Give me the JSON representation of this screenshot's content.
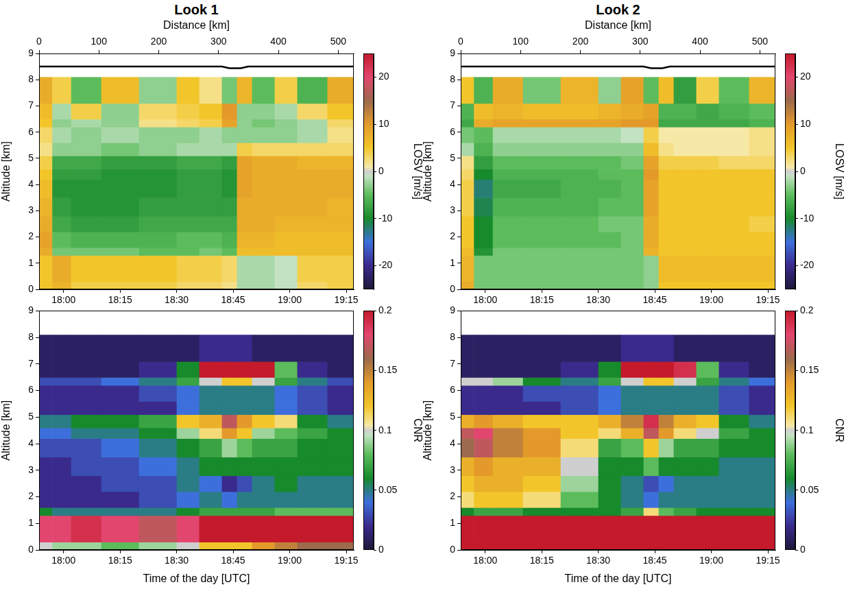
{
  "chart_data": [
    {
      "type": "heatmap",
      "title": "Look 1",
      "x2label": "Distance [km]",
      "x2lim": [
        0,
        526
      ],
      "x2ticks": [
        0,
        100,
        200,
        300,
        400,
        500
      ],
      "ylabel": "Altitude [km]",
      "xlim": [
        1073.5,
        1157
      ],
      "xticks": [
        {
          "value": 1080,
          "label": "18:00"
        },
        {
          "value": 1095,
          "label": "18:15"
        },
        {
          "value": 1110,
          "label": "18:30"
        },
        {
          "value": 1125,
          "label": "18:45"
        },
        {
          "value": 1140,
          "label": "19:00"
        },
        {
          "value": 1155,
          "label": "19:15"
        }
      ],
      "ylim": [
        0,
        9
      ],
      "yticks": [
        0,
        1,
        2,
        3,
        4,
        5,
        6,
        7,
        8,
        9
      ],
      "x_edges": [
        1073.5,
        1077,
        1082,
        1090,
        1100,
        1110,
        1116,
        1122,
        1126,
        1130,
        1136,
        1142,
        1150,
        1157
      ],
      "y_edges": [
        0,
        0.3,
        1.3,
        1.6,
        2.2,
        2.8,
        3.5,
        4.2,
        4.6,
        5.1,
        5.6,
        6.2,
        6.5,
        7.1,
        8.1
      ],
      "cells": [
        [
          5,
          7,
          4,
          4,
          4,
          3,
          3,
          2,
          -2,
          -2,
          -1,
          3,
          4
        ],
        [
          5,
          8,
          5,
          5,
          5,
          4,
          4,
          3,
          -2,
          -2,
          -1,
          4,
          4
        ],
        [
          8,
          -4,
          -4,
          -4,
          -5,
          -5,
          -4,
          -5,
          6,
          6,
          6,
          6,
          6
        ],
        [
          9,
          -5,
          -6,
          -6,
          -6,
          -5,
          -5,
          -6,
          7,
          7,
          6,
          6,
          6
        ],
        [
          8,
          -7,
          -8,
          -8,
          -7,
          -7,
          -7,
          -7,
          8,
          8,
          7,
          7,
          7
        ],
        [
          7,
          -8,
          -9,
          -9,
          -8,
          -8,
          -8,
          -8,
          8,
          8,
          8,
          8,
          7
        ],
        [
          6,
          -9,
          -9,
          -9,
          -9,
          -8,
          -8,
          -9,
          9,
          8,
          8,
          8,
          8
        ],
        [
          5,
          -8,
          -8,
          -9,
          -9,
          -8,
          -8,
          -9,
          9,
          8,
          8,
          8,
          8
        ],
        [
          4,
          -7,
          -7,
          -8,
          -8,
          -7,
          -7,
          -8,
          9,
          8,
          8,
          7,
          7
        ],
        [
          2,
          -3,
          -3,
          -4,
          -3,
          -2,
          -2,
          -2,
          4,
          3,
          3,
          3,
          3
        ],
        [
          3,
          -2,
          -3,
          -2,
          -3,
          -3,
          -2,
          -3,
          -3,
          -3,
          -3,
          -2,
          2
        ],
        [
          5,
          -3,
          -2,
          -3,
          2,
          3,
          4,
          9,
          -3,
          -4,
          -3,
          -2,
          3
        ],
        [
          6,
          -2,
          4,
          -3,
          3,
          4,
          5,
          10,
          -3,
          -3,
          -2,
          3,
          5
        ],
        [
          8,
          4,
          -5,
          6,
          -3,
          5,
          2,
          -4,
          7,
          -5,
          4,
          -6,
          8
        ]
      ],
      "colorbar": {
        "label": "LOSV [m/s]",
        "range": [
          -25,
          25
        ],
        "ticks": [
          -20,
          -10,
          0,
          10,
          20
        ]
      },
      "line": {
        "x": [
          1073.5,
          1122,
          1124,
          1127,
          1129,
          1157
        ],
        "values": [
          8.5,
          8.5,
          8.44,
          8.44,
          8.5,
          8.5
        ],
        "color": "#000000"
      }
    },
    {
      "type": "heatmap",
      "title": "Look 2",
      "x2label": "Distance [km]",
      "x2lim": [
        0,
        526
      ],
      "x2ticks": [
        0,
        100,
        200,
        300,
        400,
        500
      ],
      "ylabel": "Altitude [km]",
      "xlim": [
        1073.5,
        1157
      ],
      "xticks": [
        {
          "value": 1080,
          "label": "18:00"
        },
        {
          "value": 1095,
          "label": "18:15"
        },
        {
          "value": 1110,
          "label": "18:30"
        },
        {
          "value": 1125,
          "label": "18:45"
        },
        {
          "value": 1140,
          "label": "19:00"
        },
        {
          "value": 1155,
          "label": "19:15"
        }
      ],
      "ylim": [
        0,
        9
      ],
      "yticks": [
        0,
        1,
        2,
        3,
        4,
        5,
        6,
        7,
        8,
        9
      ],
      "x_edges": [
        1073.5,
        1077,
        1082,
        1090,
        1100,
        1110,
        1116,
        1122,
        1126,
        1130,
        1136,
        1142,
        1150,
        1157
      ],
      "y_edges": [
        0,
        0.3,
        1.3,
        1.6,
        2.2,
        2.8,
        3.5,
        4.2,
        4.6,
        5.1,
        5.6,
        6.2,
        6.5,
        7.1,
        8.1
      ],
      "cells": [
        [
          8,
          -4,
          -4,
          -4,
          -4,
          -4,
          -4,
          -3,
          5,
          5,
          5,
          5,
          5
        ],
        [
          7,
          -4,
          -4,
          -4,
          -4,
          -4,
          -4,
          -3,
          6,
          6,
          6,
          6,
          6
        ],
        [
          6,
          -9,
          -4,
          -4,
          -4,
          -4,
          -4,
          7,
          5,
          5,
          5,
          5,
          5
        ],
        [
          5,
          -10,
          -5,
          -5,
          -5,
          -5,
          -4,
          8,
          5,
          5,
          5,
          5,
          5
        ],
        [
          5,
          -10,
          -5,
          -5,
          -5,
          -4,
          -4,
          8,
          5,
          5,
          5,
          5,
          4
        ],
        [
          4,
          -11,
          -6,
          -6,
          -6,
          -5,
          -5,
          9,
          5,
          5,
          5,
          5,
          5
        ],
        [
          4,
          -12,
          -7,
          -7,
          -6,
          -6,
          -5,
          9,
          5,
          5,
          5,
          5,
          5
        ],
        [
          3,
          -10,
          -6,
          -6,
          -6,
          -5,
          -5,
          10,
          5,
          5,
          5,
          5,
          5
        ],
        [
          2,
          -8,
          -5,
          -5,
          -5,
          -5,
          -4,
          9,
          4,
          4,
          4,
          3,
          3
        ],
        [
          -2,
          -6,
          -3,
          -3,
          -3,
          -3,
          -3,
          6,
          2,
          1,
          1,
          1,
          2
        ],
        [
          -4,
          -5,
          -2,
          -2,
          -2,
          -2,
          -1,
          4,
          1,
          1,
          1,
          1,
          2
        ],
        [
          -7,
          8,
          9,
          9,
          9,
          9,
          10,
          10,
          -7,
          -7,
          -7,
          -7,
          -6
        ],
        [
          -6,
          6,
          7,
          6,
          6,
          7,
          8,
          9,
          -6,
          -6,
          -7,
          -6,
          -5
        ],
        [
          5,
          -6,
          8,
          -4,
          7,
          -3,
          9,
          -5,
          6,
          -8,
          4,
          -5,
          7
        ]
      ],
      "colorbar": {
        "label": "LOSV [m/s]",
        "range": [
          -25,
          25
        ],
        "ticks": [
          -20,
          -10,
          0,
          10,
          20
        ]
      },
      "line": {
        "x": [
          1073.5,
          1122,
          1124,
          1127,
          1129,
          1157
        ],
        "values": [
          8.5,
          8.5,
          8.44,
          8.44,
          8.5,
          8.5
        ],
        "color": "#000000"
      }
    },
    {
      "type": "heatmap",
      "xlabel": "Time of the day [UTC]",
      "ylabel": "Altitude [km]",
      "xlim": [
        1073.5,
        1157
      ],
      "xticks": [
        {
          "value": 1080,
          "label": "18:00"
        },
        {
          "value": 1095,
          "label": "18:15"
        },
        {
          "value": 1110,
          "label": "18:30"
        },
        {
          "value": 1125,
          "label": "18:45"
        },
        {
          "value": 1140,
          "label": "19:00"
        },
        {
          "value": 1155,
          "label": "19:15"
        }
      ],
      "ylim": [
        0,
        9
      ],
      "yticks": [
        0,
        1,
        2,
        3,
        4,
        5,
        6,
        7,
        8,
        9
      ],
      "x_edges": [
        1073.5,
        1077,
        1082,
        1090,
        1100,
        1110,
        1116,
        1122,
        1126,
        1130,
        1136,
        1142,
        1150,
        1157
      ],
      "y_edges": [
        0,
        0.3,
        1.3,
        1.6,
        2.2,
        2.8,
        3.5,
        4.2,
        4.6,
        5.1,
        5.6,
        6.2,
        6.5,
        7.1,
        8.1
      ],
      "cells": [
        [
          0.1,
          0.09,
          0.09,
          0.08,
          0.09,
          0.1,
          0.12,
          0.12,
          0.12,
          0.14,
          0.15,
          0.16,
          0.16
        ],
        [
          0.18,
          0.18,
          0.19,
          0.18,
          0.17,
          0.18,
          0.2,
          0.2,
          0.2,
          0.2,
          0.2,
          0.2,
          0.2
        ],
        [
          0.06,
          0.05,
          0.05,
          0.05,
          0.05,
          0.06,
          0.07,
          0.07,
          0.07,
          0.07,
          0.08,
          0.08,
          0.08
        ],
        [
          0.02,
          0.02,
          0.02,
          0.02,
          0.03,
          0.04,
          0.05,
          0.04,
          0.05,
          0.05,
          0.05,
          0.05,
          0.05
        ],
        [
          0.02,
          0.02,
          0.02,
          0.03,
          0.03,
          0.05,
          0.04,
          0.02,
          0.03,
          0.05,
          0.06,
          0.05,
          0.05
        ],
        [
          0.02,
          0.02,
          0.03,
          0.03,
          0.04,
          0.05,
          0.06,
          0.06,
          0.06,
          0.06,
          0.06,
          0.06,
          0.06
        ],
        [
          0.03,
          0.03,
          0.03,
          0.04,
          0.05,
          0.06,
          0.07,
          0.09,
          0.08,
          0.07,
          0.07,
          0.06,
          0.06
        ],
        [
          0.04,
          0.04,
          0.05,
          0.05,
          0.06,
          0.09,
          0.11,
          0.14,
          0.12,
          0.09,
          0.08,
          0.07,
          0.06
        ],
        [
          0.05,
          0.05,
          0.06,
          0.06,
          0.07,
          0.12,
          0.13,
          0.17,
          0.14,
          0.12,
          0.11,
          0.06,
          0.05
        ],
        [
          0.02,
          0.02,
          0.02,
          0.02,
          0.02,
          0.04,
          0.05,
          0.05,
          0.05,
          0.05,
          0.04,
          0.03,
          0.02
        ],
        [
          0.02,
          0.02,
          0.02,
          0.02,
          0.03,
          0.04,
          0.05,
          0.05,
          0.05,
          0.05,
          0.04,
          0.03,
          0.02
        ],
        [
          0.03,
          0.03,
          0.03,
          0.04,
          0.05,
          0.07,
          0.1,
          0.12,
          0.12,
          0.1,
          0.07,
          0.05,
          0.03
        ],
        [
          0.01,
          0.01,
          0.01,
          0.01,
          0.02,
          0.06,
          0.2,
          0.2,
          0.2,
          0.2,
          0.08,
          0.02,
          0.01
        ],
        [
          0.01,
          0.01,
          0.01,
          0.01,
          0.01,
          0.01,
          0.02,
          0.02,
          0.02,
          0.01,
          0.01,
          0.01,
          0.01
        ]
      ],
      "colorbar": {
        "label": "CNR",
        "range": [
          0,
          0.2
        ],
        "ticks": [
          0,
          0.05,
          0.1,
          0.15,
          0.2
        ]
      }
    },
    {
      "type": "heatmap",
      "xlabel": "Time of the day [UTC]",
      "ylabel": "Altitude [km]",
      "xlim": [
        1073.5,
        1157
      ],
      "xticks": [
        {
          "value": 1080,
          "label": "18:00"
        },
        {
          "value": 1095,
          "label": "18:15"
        },
        {
          "value": 1110,
          "label": "18:30"
        },
        {
          "value": 1125,
          "label": "18:45"
        },
        {
          "value": 1140,
          "label": "19:00"
        },
        {
          "value": 1155,
          "label": "19:15"
        }
      ],
      "ylim": [
        0,
        9
      ],
      "yticks": [
        0,
        1,
        2,
        3,
        4,
        5,
        6,
        7,
        8,
        9
      ],
      "x_edges": [
        1073.5,
        1077,
        1082,
        1090,
        1100,
        1110,
        1116,
        1122,
        1126,
        1130,
        1136,
        1142,
        1150,
        1157
      ],
      "y_edges": [
        0,
        0.3,
        1.3,
        1.6,
        2.2,
        2.8,
        3.5,
        4.2,
        4.6,
        5.1,
        5.6,
        6.2,
        6.5,
        7.1,
        8.1
      ],
      "cells": [
        [
          0.2,
          0.2,
          0.2,
          0.2,
          0.2,
          0.2,
          0.2,
          0.2,
          0.2,
          0.2,
          0.2,
          0.2,
          0.2
        ],
        [
          0.2,
          0.2,
          0.2,
          0.2,
          0.2,
          0.2,
          0.2,
          0.2,
          0.2,
          0.2,
          0.2,
          0.2,
          0.2
        ],
        [
          0.06,
          0.07,
          0.07,
          0.06,
          0.06,
          0.06,
          0.07,
          0.11,
          0.08,
          0.07,
          0.06,
          0.06,
          0.06
        ],
        [
          0.11,
          0.12,
          0.12,
          0.11,
          0.08,
          0.06,
          0.05,
          0.04,
          0.05,
          0.05,
          0.05,
          0.05,
          0.05
        ],
        [
          0.12,
          0.13,
          0.13,
          0.12,
          0.09,
          0.06,
          0.05,
          0.03,
          0.04,
          0.05,
          0.05,
          0.05,
          0.05
        ],
        [
          0.13,
          0.14,
          0.13,
          0.13,
          0.1,
          0.06,
          0.06,
          0.08,
          0.06,
          0.06,
          0.06,
          0.05,
          0.05
        ],
        [
          0.16,
          0.17,
          0.15,
          0.14,
          0.11,
          0.07,
          0.08,
          0.12,
          0.09,
          0.07,
          0.07,
          0.06,
          0.06
        ],
        [
          0.17,
          0.18,
          0.15,
          0.14,
          0.12,
          0.11,
          0.13,
          0.17,
          0.14,
          0.11,
          0.1,
          0.07,
          0.06
        ],
        [
          0.13,
          0.14,
          0.13,
          0.12,
          0.12,
          0.13,
          0.15,
          0.19,
          0.15,
          0.13,
          0.12,
          0.06,
          0.05
        ],
        [
          0.02,
          0.02,
          0.02,
          0.02,
          0.03,
          0.04,
          0.05,
          0.05,
          0.05,
          0.05,
          0.05,
          0.03,
          0.02
        ],
        [
          0.02,
          0.02,
          0.02,
          0.03,
          0.03,
          0.04,
          0.05,
          0.05,
          0.05,
          0.05,
          0.05,
          0.03,
          0.02
        ],
        [
          0.1,
          0.1,
          0.09,
          0.06,
          0.05,
          0.07,
          0.1,
          0.12,
          0.12,
          0.1,
          0.07,
          0.05,
          0.04
        ],
        [
          0.01,
          0.01,
          0.01,
          0.01,
          0.02,
          0.06,
          0.2,
          0.2,
          0.2,
          0.19,
          0.08,
          0.02,
          0.01
        ],
        [
          0.01,
          0.01,
          0.01,
          0.01,
          0.01,
          0.01,
          0.02,
          0.02,
          0.02,
          0.01,
          0.01,
          0.01,
          0.01
        ]
      ],
      "colorbar": {
        "label": "CNR",
        "range": [
          0,
          0.2
        ],
        "ticks": [
          0,
          0.05,
          0.1,
          0.15,
          0.2
        ]
      }
    }
  ]
}
